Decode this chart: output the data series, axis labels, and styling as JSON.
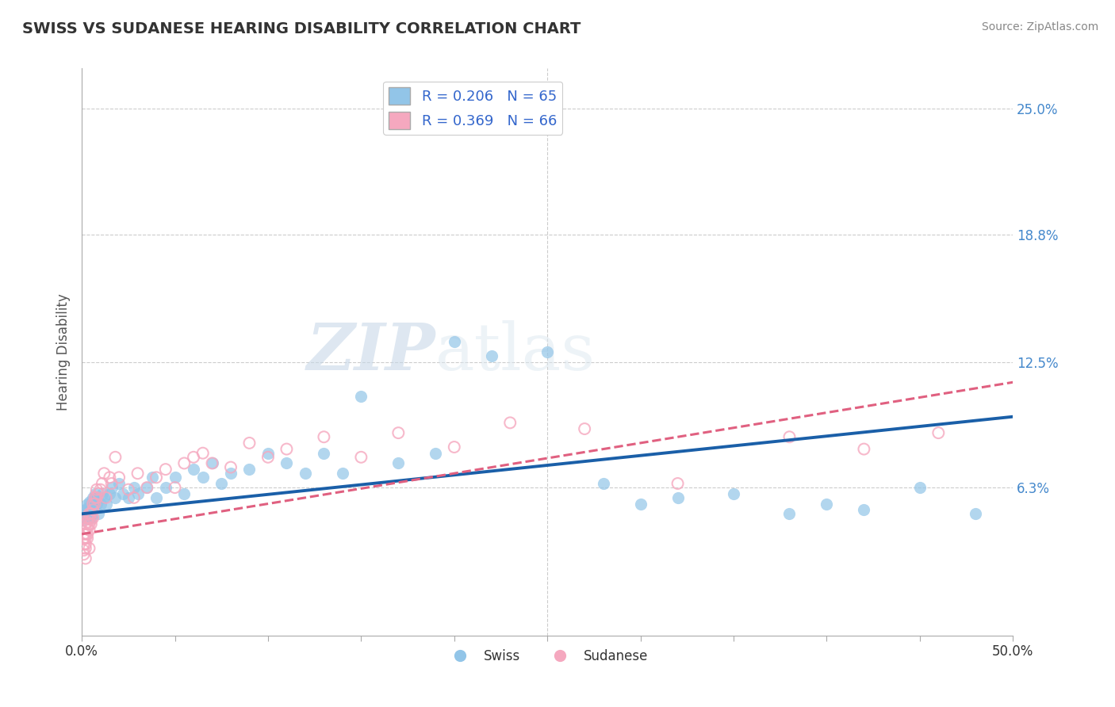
{
  "title": "SWISS VS SUDANESE HEARING DISABILITY CORRELATION CHART",
  "source": "Source: ZipAtlas.com",
  "xlabel": "",
  "ylabel": "Hearing Disability",
  "xlim": [
    0.0,
    0.5
  ],
  "ylim": [
    -0.01,
    0.27
  ],
  "xticks": [
    0.0,
    0.05,
    0.1,
    0.15,
    0.2,
    0.25,
    0.3,
    0.35,
    0.4,
    0.45,
    0.5
  ],
  "xticklabels": [
    "0.0%",
    "",
    "",
    "",
    "",
    "",
    "",
    "",
    "",
    "",
    "50.0%"
  ],
  "ytick_positions": [
    0.063,
    0.125,
    0.188,
    0.25
  ],
  "ytick_labels": [
    "6.3%",
    "12.5%",
    "18.8%",
    "25.0%"
  ],
  "swiss_color": "#92c5e8",
  "sudanese_color": "#f5a8bf",
  "swiss_line_color": "#1a5fa8",
  "sudanese_line_color": "#e06080",
  "swiss_R": 0.206,
  "swiss_N": 65,
  "sudanese_R": 0.369,
  "sudanese_N": 66,
  "background_color": "#ffffff",
  "grid_color": "#cccccc",
  "watermark_zip": "ZIP",
  "watermark_atlas": "atlas",
  "swiss_x": [
    0.001,
    0.002,
    0.002,
    0.002,
    0.003,
    0.003,
    0.003,
    0.004,
    0.004,
    0.004,
    0.005,
    0.005,
    0.005,
    0.005,
    0.006,
    0.006,
    0.007,
    0.007,
    0.008,
    0.008,
    0.009,
    0.01,
    0.011,
    0.012,
    0.013,
    0.015,
    0.016,
    0.018,
    0.02,
    0.022,
    0.025,
    0.028,
    0.03,
    0.035,
    0.038,
    0.04,
    0.045,
    0.05,
    0.055,
    0.06,
    0.065,
    0.07,
    0.075,
    0.08,
    0.09,
    0.1,
    0.11,
    0.12,
    0.13,
    0.14,
    0.15,
    0.17,
    0.19,
    0.2,
    0.22,
    0.25,
    0.28,
    0.3,
    0.32,
    0.35,
    0.38,
    0.4,
    0.42,
    0.45,
    0.48
  ],
  "swiss_y": [
    0.047,
    0.05,
    0.052,
    0.048,
    0.053,
    0.05,
    0.055,
    0.048,
    0.053,
    0.056,
    0.05,
    0.055,
    0.048,
    0.052,
    0.058,
    0.055,
    0.053,
    0.06,
    0.055,
    0.058,
    0.05,
    0.055,
    0.06,
    0.058,
    0.055,
    0.06,
    0.063,
    0.058,
    0.065,
    0.06,
    0.058,
    0.063,
    0.06,
    0.063,
    0.068,
    0.058,
    0.063,
    0.068,
    0.06,
    0.072,
    0.068,
    0.075,
    0.065,
    0.07,
    0.072,
    0.08,
    0.075,
    0.07,
    0.08,
    0.07,
    0.108,
    0.075,
    0.08,
    0.135,
    0.128,
    0.13,
    0.065,
    0.055,
    0.058,
    0.06,
    0.05,
    0.055,
    0.052,
    0.063,
    0.05
  ],
  "sudanese_x": [
    0.001,
    0.001,
    0.001,
    0.001,
    0.001,
    0.002,
    0.002,
    0.002,
    0.002,
    0.002,
    0.002,
    0.002,
    0.003,
    0.003,
    0.003,
    0.003,
    0.003,
    0.004,
    0.004,
    0.004,
    0.004,
    0.004,
    0.005,
    0.005,
    0.005,
    0.006,
    0.006,
    0.006,
    0.007,
    0.007,
    0.008,
    0.008,
    0.009,
    0.01,
    0.011,
    0.012,
    0.013,
    0.015,
    0.016,
    0.018,
    0.02,
    0.025,
    0.028,
    0.03,
    0.035,
    0.04,
    0.045,
    0.05,
    0.055,
    0.06,
    0.065,
    0.07,
    0.08,
    0.09,
    0.1,
    0.11,
    0.13,
    0.15,
    0.17,
    0.2,
    0.23,
    0.27,
    0.32,
    0.38,
    0.42,
    0.46
  ],
  "sudanese_y": [
    0.03,
    0.032,
    0.035,
    0.038,
    0.04,
    0.033,
    0.035,
    0.038,
    0.04,
    0.043,
    0.045,
    0.028,
    0.038,
    0.04,
    0.043,
    0.046,
    0.048,
    0.042,
    0.045,
    0.048,
    0.05,
    0.033,
    0.047,
    0.05,
    0.045,
    0.052,
    0.055,
    0.048,
    0.055,
    0.058,
    0.058,
    0.062,
    0.06,
    0.062,
    0.065,
    0.07,
    0.058,
    0.068,
    0.065,
    0.078,
    0.068,
    0.062,
    0.058,
    0.07,
    0.063,
    0.068,
    0.072,
    0.063,
    0.075,
    0.078,
    0.08,
    0.075,
    0.073,
    0.085,
    0.078,
    0.082,
    0.088,
    0.078,
    0.09,
    0.083,
    0.095,
    0.092,
    0.065,
    0.088,
    0.082,
    0.09
  ],
  "swiss_line_x0": 0.0,
  "swiss_line_y0": 0.05,
  "swiss_line_x1": 0.5,
  "swiss_line_y1": 0.098,
  "sudanese_line_x0": 0.0,
  "sudanese_line_y0": 0.04,
  "sudanese_line_x1": 0.5,
  "sudanese_line_y1": 0.115
}
